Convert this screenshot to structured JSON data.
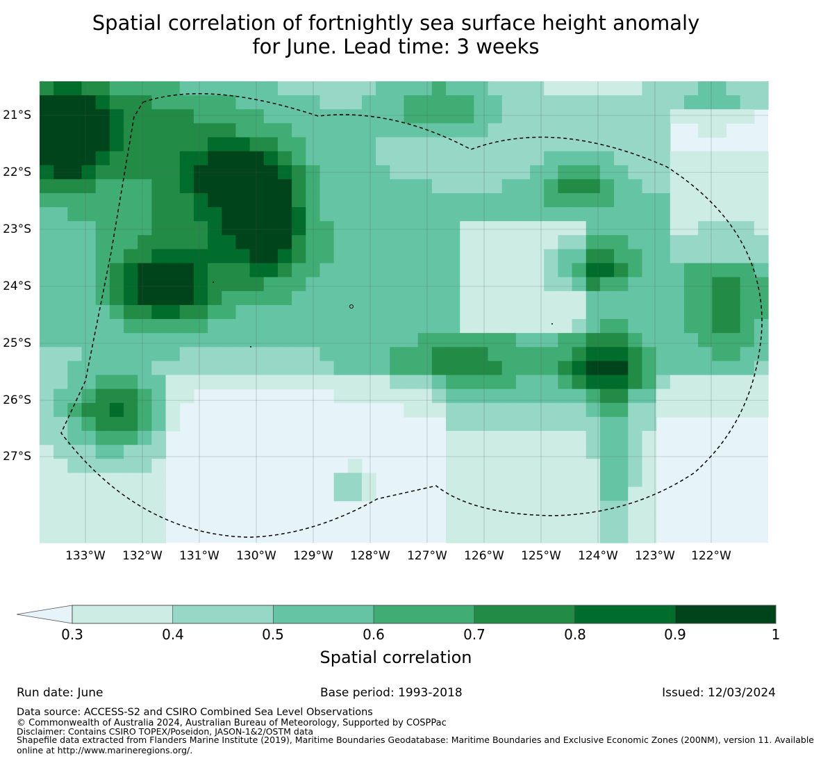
{
  "title_line1": "Spatial correlation of fortnightly sea surface height anomaly",
  "title_line2": "for June. Lead time: 3 weeks",
  "map": {
    "lat_labels": [
      "21°S",
      "22°S",
      "23°S",
      "24°S",
      "25°S",
      "26°S",
      "27°S"
    ],
    "lon_labels": [
      "133°W",
      "132°W",
      "131°W",
      "130°W",
      "129°W",
      "128°W",
      "127°W",
      "126°W",
      "125°W",
      "124°W",
      "123°W",
      "122°W"
    ],
    "grid": true,
    "eez_boundary": "dashed black outline"
  },
  "colorbar": {
    "ticks": [
      "0.3",
      "0.4",
      "0.5",
      "0.6",
      "0.7",
      "0.8",
      "0.9",
      "1"
    ],
    "bins": [
      {
        "from": 0.3,
        "to": 0.4,
        "color": "#ccece4"
      },
      {
        "from": 0.4,
        "to": 0.5,
        "color": "#97d7c6"
      },
      {
        "from": 0.5,
        "to": 0.6,
        "color": "#64c4a4"
      },
      {
        "from": 0.6,
        "to": 0.7,
        "color": "#40ad74"
      },
      {
        "from": 0.7,
        "to": 0.8,
        "color": "#228c47"
      },
      {
        "from": 0.8,
        "to": 0.9,
        "color": "#006d2c"
      },
      {
        "from": 0.9,
        "to": 1.0,
        "color": "#00441b"
      }
    ],
    "below_min_color": "#e6f4f9",
    "label": "Spatial correlation"
  },
  "footer": {
    "run_date": "Run date: June",
    "base_period": "Base period: 1993-2018",
    "issued": "Issued: 12/03/2024",
    "data_source": "Data source: ACCESS-S2 and CSIRO Combined Sea Level Observations",
    "copyright": "© Commonwealth of Australia 2024, Australian Bureau of Meteorology, Supported by COSPPac",
    "disclaimer": "Disclaimer: Contains CSIRO TOPEX/Poseidon, JASON-1&2/OSTM data",
    "shapefile_line1": "Shapefile data extracted from Flanders Marine Institute (2019), Maritime Boundaries Geodatabase: Maritime Boundaries and Exclusive Economic Zones (200NM), version 11. Available",
    "shapefile_line2": "online at http://www.marineregions.org/."
  }
}
